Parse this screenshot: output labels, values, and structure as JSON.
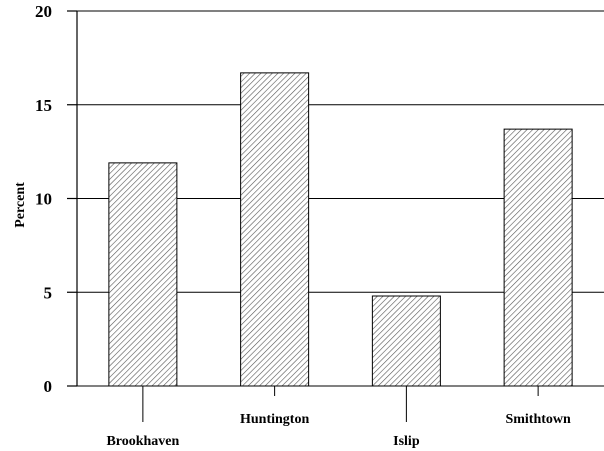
{
  "chart_data": {
    "type": "bar",
    "title": "",
    "xlabel": "",
    "ylabel": "Percent",
    "categories": [
      "Brookhaven",
      "Huntington",
      "Islip",
      "Smithtown"
    ],
    "values": [
      11.9,
      16.7,
      4.8,
      13.7
    ],
    "ylim": [
      0,
      20
    ],
    "yticks": [
      0,
      5,
      10,
      15,
      20
    ],
    "grid": true,
    "bar_fill": "diagonal-hatch",
    "colors": {
      "bar_stroke": "#000000",
      "hatch": "#555555",
      "grid": "#000000"
    }
  }
}
